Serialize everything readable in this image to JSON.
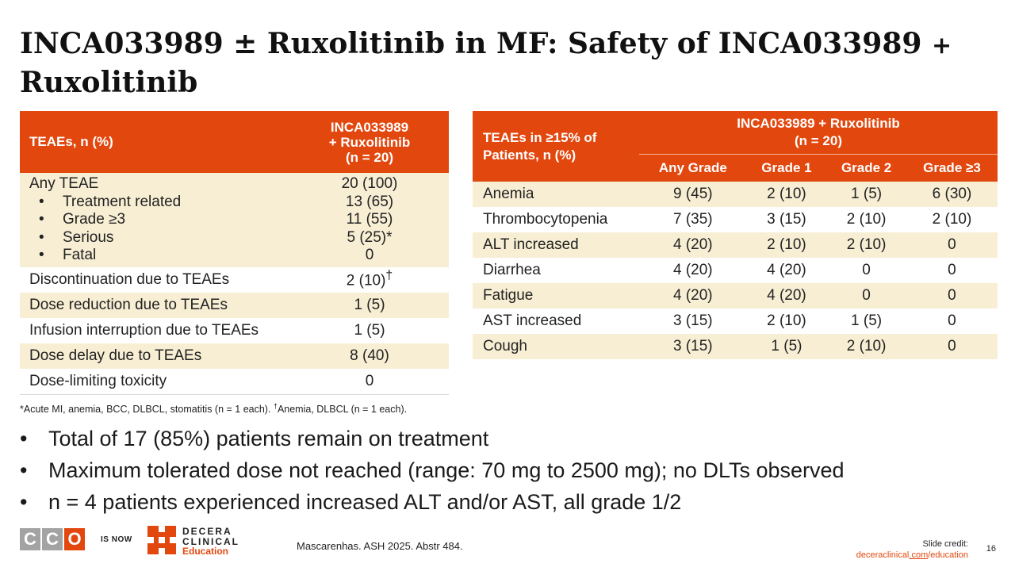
{
  "title": {
    "part1": "INCA033989 ± Ruxolitinib in MF: Safety of INCA033989",
    "plus": "+",
    "part2": "Ruxolitinib"
  },
  "left_table": {
    "header": {
      "col1": "TEAEs, n (%)",
      "col2_line1": "INCA033989",
      "col2_line2": "+ Ruxolitinib",
      "col2_line3": "(n = 20)"
    },
    "any_teae": {
      "label": "Any TEAE",
      "value": "20 (100)",
      "subitems": [
        {
          "label": "Treatment related",
          "value": "13 (65)"
        },
        {
          "label": "Grade ≥3",
          "value": "11 (55)"
        },
        {
          "label": "Serious",
          "value": "5 (25)*"
        },
        {
          "label": "Fatal",
          "value": "0"
        }
      ]
    },
    "rows": [
      {
        "label": "Discontinuation due to TEAEs",
        "value": "2 (10)",
        "sup": "†"
      },
      {
        "label": "Dose reduction due to TEAEs",
        "value": "1 (5)",
        "sup": ""
      },
      {
        "label": "Infusion interruption due to TEAEs",
        "value": "1 (5)",
        "sup": ""
      },
      {
        "label": "Dose delay due to TEAEs",
        "value": "8 (40)",
        "sup": ""
      },
      {
        "label": "Dose-limiting toxicity",
        "value": "0",
        "sup": ""
      }
    ]
  },
  "footnote": {
    "part1": "*Acute MI, anemia, BCC, DLBCL, stomatitis (n = 1 each). ",
    "dagger": "†",
    "part2": "Anemia, DLBCL (n = 1 each)."
  },
  "right_table": {
    "header": {
      "col1_line1": "TEAEs in ≥15% of",
      "col1_line2": "Patients, n (%)",
      "group_line1": "INCA033989 + Ruxolitinib",
      "group_line2": "(n = 20)",
      "sub": [
        "Any Grade",
        "Grade 1",
        "Grade 2",
        "Grade ≥3"
      ]
    },
    "rows": [
      {
        "label": "Anemia",
        "values": [
          "9 (45)",
          "2 (10)",
          "1 (5)",
          "6 (30)"
        ]
      },
      {
        "label": "Thrombocytopenia",
        "values": [
          "7 (35)",
          "3 (15)",
          "2 (10)",
          "2 (10)"
        ]
      },
      {
        "label": "ALT increased",
        "values": [
          "4 (20)",
          "2 (10)",
          "2 (10)",
          "0"
        ]
      },
      {
        "label": "Diarrhea",
        "values": [
          "4 (20)",
          "4 (20)",
          "0",
          "0"
        ]
      },
      {
        "label": "Fatigue",
        "values": [
          "4 (20)",
          "4 (20)",
          "0",
          "0"
        ]
      },
      {
        "label": "AST increased",
        "values": [
          "3 (15)",
          "2 (10)",
          "1 (5)",
          "0"
        ]
      },
      {
        "label": "Cough",
        "values": [
          "3 (15)",
          "1 (5)",
          "2 (10)",
          "0"
        ]
      }
    ]
  },
  "bullets": [
    "Total of 17 (85%) patients remain on treatment",
    "Maximum tolerated dose not reached (range: 70 mg to 2500 mg); no DLTs observed",
    "n = 4 patients experienced increased ALT and/or AST, all grade 1/2"
  ],
  "footer": {
    "cco_letters": [
      "C",
      "C",
      "O"
    ],
    "is_now": "IS NOW",
    "brand_line1": "DECERA",
    "brand_line2": "CLINICAL",
    "brand_line3": "Education",
    "citation": "Mascarenhas. ASH 2025. Abstr 484.",
    "credit_label": "Slide credit:",
    "credit_link_a": "deceraclinical",
    "credit_link_b": ".com",
    "credit_link_c": "/education",
    "page_number": "16"
  },
  "colors": {
    "accent": "#e2470e",
    "row_shade": "#f7eed4",
    "logo_gray": "#a3a3a3"
  },
  "icons": {
    "brand_logo": "decera-logo-icon"
  }
}
